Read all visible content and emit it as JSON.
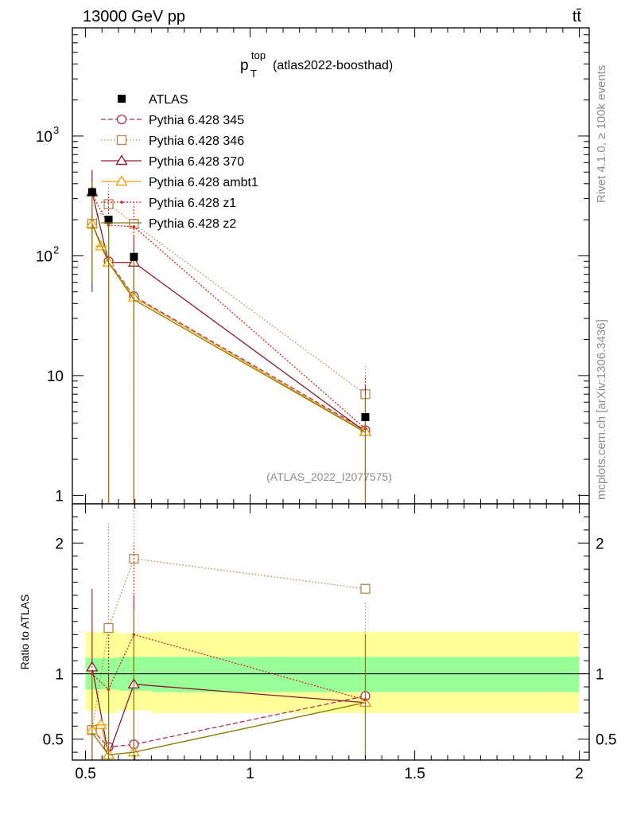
{
  "header": {
    "left": "13000 GeV pp",
    "right": "tt̄"
  },
  "title": {
    "main": "p",
    "sub": "T",
    "sup": "top",
    "suffix": "(atlas2022-boosthad)"
  },
  "side_labels": {
    "top": "Rivet 4.1.0, ≥ 100k events",
    "bottom": "mcplots.cern.ch [arXiv:1306.3436]"
  },
  "ref_label": "(ATLAS_2022_I2077575)",
  "ratio_ylabel": "Ratio to ATLAS",
  "chart_data": {
    "type": "line",
    "x_ticks": [
      {
        "v": 0.5,
        "label": "0.5"
      },
      {
        "v": 1,
        "label": "1"
      },
      {
        "v": 1.5,
        "label": "1.5"
      },
      {
        "v": 2,
        "label": "2"
      }
    ],
    "xlim": [
      0.46,
      2.03
    ],
    "main": {
      "yscale": "log",
      "ylim": [
        0.85,
        8000
      ],
      "y_ticks": [
        {
          "v": 1,
          "label": "1"
        },
        {
          "v": 10,
          "label": "10"
        },
        {
          "v": 100,
          "label": "10",
          "exp": "2"
        },
        {
          "v": 1000,
          "label": "10",
          "exp": "3"
        }
      ]
    },
    "ratio": {
      "ylim": [
        0.34,
        2.3
      ],
      "y_ticks": [
        {
          "v": 0.5,
          "label": "0.5"
        },
        {
          "v": 1,
          "label": "1"
        },
        {
          "v": 2,
          "label": "2"
        }
      ],
      "band_inner": [
        [
          0.5,
          0.88,
          1.12
        ],
        [
          0.56,
          0.88,
          1.12
        ],
        [
          0.6,
          0.87,
          1.13
        ],
        [
          0.7,
          0.86,
          1.13
        ],
        [
          2.0,
          0.86,
          1.12
        ]
      ],
      "band_outer": [
        [
          0.5,
          0.72,
          1.32
        ],
        [
          0.55,
          0.7,
          1.33
        ],
        [
          0.6,
          0.72,
          1.31
        ],
        [
          0.7,
          0.7,
          1.32
        ],
        [
          2.0,
          0.71,
          1.32
        ]
      ]
    },
    "data": {
      "name": "ATLAS",
      "points": [
        [
          0.52,
          340
        ],
        [
          0.57,
          200
        ],
        [
          0.647,
          98
        ],
        [
          1.35,
          4.5
        ]
      ]
    },
    "series": [
      {
        "name": "Pythia 6.428 345",
        "color": "#b03050",
        "marker": "circle",
        "dash": "6,3",
        "points": [
          [
            0.52,
            185
          ],
          [
            0.57,
            90
          ],
          [
            0.647,
            46
          ],
          [
            1.35,
            3.5
          ]
        ],
        "ratio": [
          [
            0.52,
            0.57
          ],
          [
            0.57,
            0.44
          ],
          [
            0.647,
            0.46
          ],
          [
            1.35,
            0.83
          ]
        ]
      },
      {
        "name": "Pythia 6.428 346",
        "color": "#b08850",
        "marker": "square",
        "dash": "1.5,2.5",
        "points": [
          [
            0.52,
            185
          ],
          [
            0.57,
            270
          ],
          [
            0.647,
            185
          ],
          [
            1.35,
            7
          ]
        ],
        "ratio": [
          [
            0.52,
            0.57
          ],
          [
            0.57,
            1.35
          ],
          [
            0.647,
            1.88
          ],
          [
            1.35,
            1.65
          ]
        ]
      },
      {
        "name": "Pythia 6.428 370",
        "color": "#8b1a2a",
        "marker": "triangle",
        "dash": "",
        "points": [
          [
            0.52,
            340
          ],
          [
            0.57,
            88
          ],
          [
            0.647,
            88
          ],
          [
            1.35,
            3.4
          ]
        ],
        "ratio": [
          [
            0.52,
            1.05
          ],
          [
            0.57,
            0.38
          ],
          [
            0.647,
            0.92
          ],
          [
            1.35,
            0.78
          ]
        ]
      },
      {
        "name": "Pythia 6.428 ambt1",
        "color": "#f0a000",
        "marker": "triangle",
        "dash": "",
        "points": [
          [
            0.52,
            185
          ],
          [
            0.547,
            120
          ],
          [
            0.57,
            88
          ],
          [
            0.647,
            45
          ],
          [
            1.35,
            3.4
          ]
        ],
        "ratio": [
          [
            0.52,
            0.57
          ],
          [
            0.547,
            0.61
          ],
          [
            0.57,
            0.38
          ],
          [
            0.647,
            0.4
          ],
          [
            1.35,
            0.78
          ]
        ]
      },
      {
        "name": "Pythia 6.428 z1",
        "color": "#d42020",
        "marker": "point",
        "dash": "2,2",
        "points": [
          [
            0.52,
            330
          ],
          [
            0.57,
            180
          ],
          [
            0.647,
            175
          ],
          [
            1.35,
            3.6
          ]
        ],
        "ratio": [
          [
            0.52,
            1.0
          ],
          [
            0.57,
            0.88
          ],
          [
            0.647,
            1.3
          ],
          [
            1.35,
            0.8
          ]
        ]
      },
      {
        "name": "Pythia 6.428 z2",
        "color": "#808010",
        "marker": "none",
        "dash": "",
        "points": [
          [
            0.52,
            185
          ],
          [
            0.57,
            88
          ],
          [
            0.647,
            43
          ],
          [
            1.35,
            3.35
          ]
        ],
        "ratio": [
          [
            0.52,
            0.55
          ],
          [
            0.57,
            0.38
          ],
          [
            0.647,
            0.4
          ],
          [
            1.35,
            0.78
          ]
        ]
      }
    ]
  }
}
